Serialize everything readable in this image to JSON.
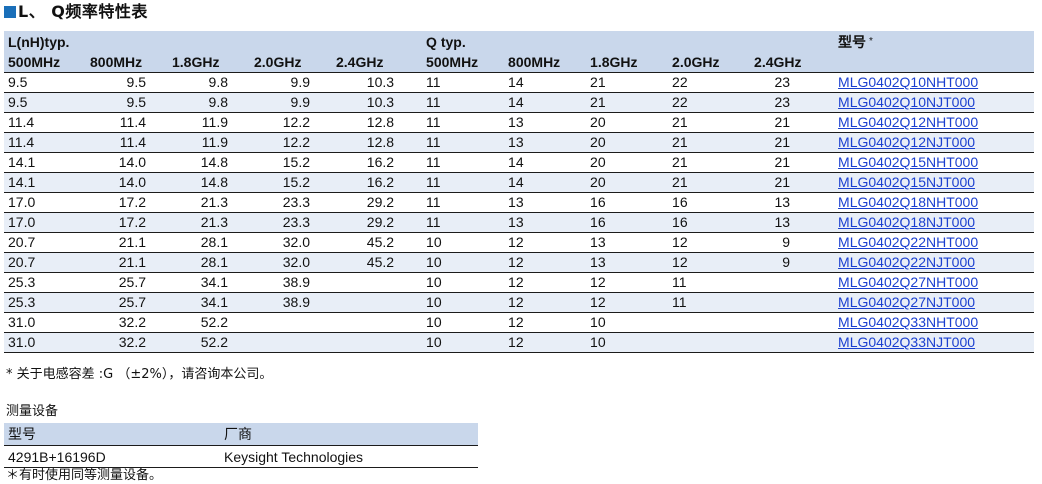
{
  "title": "L、 Q频率特性表",
  "table": {
    "group_l": "L(nH)typ.",
    "group_q": "Q typ.",
    "model_header": "型号",
    "model_star": "*",
    "freq_headers_l": [
      "500MHz",
      "800MHz",
      "1.8GHz",
      "2.0GHz",
      "2.4GHz"
    ],
    "freq_headers_q": [
      "500MHz",
      "800MHz",
      "1.8GHz",
      "2.0GHz",
      "2.4GHz"
    ],
    "rows": [
      {
        "l": [
          "9.5",
          "9.5",
          "9.8",
          "9.9",
          "10.3"
        ],
        "q": [
          "11",
          "14",
          "21",
          "22",
          "23"
        ],
        "model": "MLG0402Q10NHT000"
      },
      {
        "l": [
          "9.5",
          "9.5",
          "9.8",
          "9.9",
          "10.3"
        ],
        "q": [
          "11",
          "14",
          "21",
          "22",
          "23"
        ],
        "model": "MLG0402Q10NJT000"
      },
      {
        "l": [
          "11.4",
          "11.4",
          "11.9",
          "12.2",
          "12.8"
        ],
        "q": [
          "11",
          "13",
          "20",
          "21",
          "21"
        ],
        "model": "MLG0402Q12NHT000"
      },
      {
        "l": [
          "11.4",
          "11.4",
          "11.9",
          "12.2",
          "12.8"
        ],
        "q": [
          "11",
          "13",
          "20",
          "21",
          "21"
        ],
        "model": "MLG0402Q12NJT000"
      },
      {
        "l": [
          "14.1",
          "14.0",
          "14.8",
          "15.2",
          "16.2"
        ],
        "q": [
          "11",
          "14",
          "20",
          "21",
          "21"
        ],
        "model": "MLG0402Q15NHT000"
      },
      {
        "l": [
          "14.1",
          "14.0",
          "14.8",
          "15.2",
          "16.2"
        ],
        "q": [
          "11",
          "14",
          "20",
          "21",
          "21"
        ],
        "model": "MLG0402Q15NJT000"
      },
      {
        "l": [
          "17.0",
          "17.2",
          "21.3",
          "23.3",
          "29.2"
        ],
        "q": [
          "11",
          "13",
          "16",
          "16",
          "13"
        ],
        "model": "MLG0402Q18NHT000"
      },
      {
        "l": [
          "17.0",
          "17.2",
          "21.3",
          "23.3",
          "29.2"
        ],
        "q": [
          "11",
          "13",
          "16",
          "16",
          "13"
        ],
        "model": "MLG0402Q18NJT000"
      },
      {
        "l": [
          "20.7",
          "21.1",
          "28.1",
          "32.0",
          "45.2"
        ],
        "q": [
          "10",
          "12",
          "13",
          "12",
          "9"
        ],
        "model": "MLG0402Q22NHT000"
      },
      {
        "l": [
          "20.7",
          "21.1",
          "28.1",
          "32.0",
          "45.2"
        ],
        "q": [
          "10",
          "12",
          "13",
          "12",
          "9"
        ],
        "model": "MLG0402Q22NJT000"
      },
      {
        "l": [
          "25.3",
          "25.7",
          "34.1",
          "38.9",
          ""
        ],
        "q": [
          "10",
          "12",
          "12",
          "11",
          ""
        ],
        "model": "MLG0402Q27NHT000"
      },
      {
        "l": [
          "25.3",
          "25.7",
          "34.1",
          "38.9",
          ""
        ],
        "q": [
          "10",
          "12",
          "12",
          "11",
          ""
        ],
        "model": "MLG0402Q27NJT000"
      },
      {
        "l": [
          "31.0",
          "32.2",
          "52.2",
          "",
          ""
        ],
        "q": [
          "10",
          "12",
          "10",
          "",
          ""
        ],
        "model": "MLG0402Q33NHT000"
      },
      {
        "l": [
          "31.0",
          "32.2",
          "52.2",
          "",
          ""
        ],
        "q": [
          "10",
          "12",
          "10",
          "",
          ""
        ],
        "model": "MLG0402Q33NJT000"
      }
    ]
  },
  "footnote_1": "* 关于电感容差 :G （±2%），请咨询本公司。",
  "equipment": {
    "title": "测量设备",
    "col_model": "型号",
    "col_maker": "厂商",
    "rows": [
      {
        "model": "4291B+16196D",
        "maker": "Keysight Technologies"
      }
    ]
  },
  "footnote_2": "＊有时使用同等测量设备。",
  "colors": {
    "header_bg": "#c9d7eb",
    "alt_row_bg": "#e8eef7",
    "link": "#1a3fd0",
    "title_square": "#1a6fb9"
  }
}
